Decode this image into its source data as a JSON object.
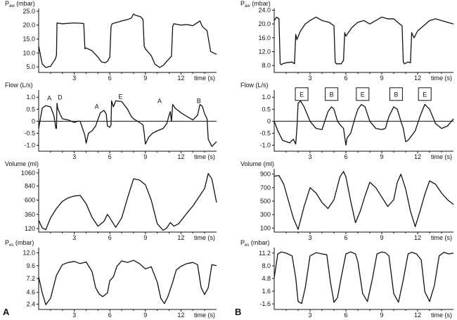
{
  "panel_labels": [
    "A",
    "B"
  ],
  "chart_data": [
    {
      "panel": "A",
      "type": "line",
      "ylabel_main": "P",
      "ylabel_sub": "aw",
      "ylabel_unit": " (mbar)",
      "xlabel": "time (s)",
      "xticks": [
        3,
        6,
        9,
        12
      ],
      "xlim": [
        0,
        15
      ],
      "yticks": [
        5.0,
        10.0,
        15.0,
        20.0,
        25.0
      ],
      "ytick_labels": [
        "5.0",
        "10.0",
        "15.0",
        "20.0",
        "25.0"
      ],
      "ylim": [
        3,
        26
      ],
      "series": [
        {
          "x": [
            0,
            0.3,
            0.6,
            1.0,
            1.2,
            1.4,
            1.5,
            1.55,
            2.0,
            3.0,
            3.8,
            3.9,
            4.0,
            4.5,
            5.0,
            5.3,
            5.6,
            5.8,
            6.0,
            6.1,
            6.2,
            7.0,
            7.5,
            7.8,
            8.0,
            8.2,
            8.6,
            8.8,
            8.9,
            9.0,
            9.5,
            9.8,
            10.2,
            10.5,
            10.8,
            11.2,
            11.3,
            11.4,
            12.0,
            12.5,
            13.0,
            13.6,
            13.8,
            14.2,
            14.5,
            15.0
          ],
          "y": [
            12.5,
            6,
            4.8,
            5.2,
            6.5,
            7.8,
            9.2,
            20.8,
            20.5,
            20.8,
            20.6,
            11.5,
            11.8,
            10.8,
            8.5,
            6.8,
            6.5,
            7.0,
            8.5,
            19.5,
            20.5,
            21.5,
            22.0,
            22.5,
            24.0,
            23.5,
            23.0,
            22.0,
            12.5,
            11.5,
            9.0,
            6.0,
            4.8,
            5.5,
            7.0,
            8.8,
            19.5,
            20.5,
            20.0,
            20.2,
            19.8,
            21.5,
            19.5,
            18.0,
            10.5,
            9.5
          ]
        }
      ]
    },
    {
      "panel": "A",
      "type": "line",
      "ylabel": "Flow (L/s)",
      "xlabel": "time (s)",
      "xticks": [
        3,
        6,
        9,
        12
      ],
      "xlim": [
        0,
        15
      ],
      "yticks": [
        -1.0,
        -0.5,
        0,
        0.5,
        1.0
      ],
      "ytick_labels": [
        "-1.0",
        "-0.5",
        "0",
        "0.5",
        "1.0"
      ],
      "ylim": [
        -1.25,
        1.3
      ],
      "zero_line": true,
      "annotations": [
        {
          "text": "A",
          "x": 0.9,
          "y": 0.98
        },
        {
          "text": "D",
          "x": 1.8,
          "y": 1.0
        },
        {
          "text": "A",
          "x": 4.9,
          "y": 0.62
        },
        {
          "text": "E",
          "x": 6.9,
          "y": 1.03
        },
        {
          "text": "A",
          "x": 10.2,
          "y": 0.86
        },
        {
          "text": "B",
          "x": 13.5,
          "y": 0.86
        }
      ],
      "series": [
        {
          "x": [
            0,
            0.3,
            0.6,
            1.0,
            1.2,
            1.3,
            1.45,
            1.5,
            1.55,
            1.6,
            1.8,
            2.0,
            2.5,
            3.0,
            3.3,
            3.5,
            3.9,
            4.0,
            4.2,
            4.5,
            4.8,
            5.2,
            5.5,
            5.7,
            5.8,
            6.0,
            6.1,
            6.15,
            6.3,
            6.5,
            7.0,
            7.5,
            7.8,
            8.0,
            8.5,
            8.8,
            8.9,
            9.0,
            9.3,
            9.6,
            10.0,
            10.5,
            10.8,
            11.0,
            11.1,
            11.2,
            11.3,
            11.5,
            12.0,
            12.5,
            13.0,
            13.4,
            13.6,
            13.8,
            14.0,
            14.2,
            14.3,
            14.6,
            15.0
          ],
          "y": [
            -0.3,
            0.55,
            0.65,
            0.6,
            0.35,
            0.2,
            -0.3,
            -0.3,
            0.75,
            0.55,
            0.3,
            0.1,
            0.05,
            -0.05,
            0.0,
            0.0,
            -0.6,
            -0.92,
            -0.5,
            -0.4,
            -0.2,
            0.35,
            0.45,
            0.3,
            -0.2,
            -0.25,
            -0.15,
            0.85,
            0.6,
            0.85,
            0.82,
            0.5,
            0.2,
            0.1,
            -0.05,
            -0.15,
            -0.5,
            -0.95,
            -0.65,
            -0.5,
            -0.4,
            -0.3,
            -0.1,
            0.25,
            0.4,
            0.0,
            0.7,
            0.55,
            0.35,
            0.2,
            0.05,
            0.25,
            0.7,
            0.62,
            0.3,
            0.1,
            -0.75,
            -1.05,
            -0.85
          ]
        }
      ]
    },
    {
      "panel": "A",
      "type": "line",
      "ylabel": "Volume (ml)",
      "xlabel": "time (s)",
      "xticks": [
        3,
        6,
        9,
        12
      ],
      "xlim": [
        0,
        15
      ],
      "yticks": [
        120,
        360,
        600,
        840,
        1060
      ],
      "ytick_labels": [
        "120",
        "360",
        "600",
        "840",
        "1060"
      ],
      "ylim": [
        60,
        1130
      ],
      "series": [
        {
          "x": [
            0,
            0.3,
            0.6,
            1.0,
            1.5,
            2.0,
            2.5,
            3.0,
            3.5,
            4.0,
            4.5,
            5.0,
            5.5,
            5.8,
            6.0,
            6.5,
            7.0,
            7.5,
            8.0,
            8.5,
            9.0,
            9.5,
            10.0,
            10.5,
            10.8,
            11.1,
            11.4,
            11.8,
            12.5,
            13.0,
            13.5,
            14.0,
            14.3,
            14.6,
            15.0
          ],
          "y": [
            260,
            130,
            100,
            300,
            460,
            580,
            640,
            670,
            680,
            540,
            310,
            160,
            240,
            360,
            300,
            140,
            300,
            640,
            960,
            940,
            860,
            600,
            200,
            90,
            130,
            220,
            160,
            200,
            380,
            500,
            650,
            800,
            1050,
            960,
            560
          ]
        }
      ]
    },
    {
      "panel": "A",
      "type": "line",
      "ylabel_main": "P",
      "ylabel_sub": "es",
      "ylabel_unit": " (mbar)",
      "xlabel": "time (s)",
      "xticks": [
        3,
        6,
        9,
        12
      ],
      "xlim": [
        0,
        15
      ],
      "yticks": [
        2.4,
        4.6,
        7.2,
        9.6,
        12.0
      ],
      "ytick_labels": [
        "2.4",
        "4.6",
        "7.2",
        "9.6",
        "12.0"
      ],
      "ylim": [
        1.4,
        13.0
      ],
      "series": [
        {
          "x": [
            0,
            0.3,
            0.6,
            1.0,
            1.5,
            2.0,
            2.5,
            3.0,
            3.5,
            4.0,
            4.5,
            4.8,
            5.1,
            5.4,
            5.8,
            6.0,
            6.3,
            6.6,
            7.0,
            7.5,
            8.0,
            8.5,
            9.0,
            9.5,
            10.0,
            10.3,
            10.6,
            10.9,
            11.3,
            11.6,
            12.0,
            12.5,
            13.0,
            13.4,
            13.7,
            14.0,
            14.3,
            14.6,
            15.0
          ],
          "y": [
            7.5,
            4.5,
            2.3,
            3.5,
            7.8,
            9.8,
            10.2,
            10.4,
            10.0,
            10.3,
            8.5,
            5.5,
            4.3,
            3.8,
            4.5,
            6.8,
            7.5,
            9.5,
            10.5,
            10.2,
            10.6,
            10.0,
            9.0,
            9.4,
            6.5,
            3.5,
            2.5,
            3.8,
            6.5,
            8.8,
            9.5,
            10.0,
            10.2,
            9.8,
            5.5,
            4.2,
            5.5,
            9.8,
            9.6
          ]
        }
      ]
    },
    {
      "panel": "B",
      "type": "line",
      "ylabel_main": "P",
      "ylabel_sub": "aw",
      "ylabel_unit": " (mbar)",
      "xlabel": "time (s)",
      "xticks": [
        3,
        6,
        9,
        12
      ],
      "xlim": [
        0,
        15
      ],
      "yticks": [
        8.0,
        12.0,
        16.0,
        20.0,
        24.0
      ],
      "ytick_labels": [
        "8.0",
        "12.0",
        "16.0",
        "20.0",
        "24.0"
      ],
      "ylim": [
        6,
        24.5
      ],
      "series": [
        {
          "x": [
            0,
            0.2,
            0.4,
            0.5,
            0.6,
            0.7,
            1.0,
            1.5,
            1.7,
            1.8,
            1.9,
            2.2,
            2.6,
            3.0,
            3.5,
            4.0,
            4.6,
            5.0,
            5.1,
            5.2,
            5.6,
            5.8,
            5.9,
            6.0,
            6.3,
            6.5,
            7.0,
            7.5,
            8.0,
            8.5,
            9.0,
            9.5,
            10.0,
            10.5,
            10.7,
            10.8,
            10.9,
            11.2,
            11.4,
            11.5,
            11.7,
            12.0,
            12.5,
            13.0,
            13.5,
            14.0,
            14.5,
            15.0
          ],
          "y": [
            21.0,
            22.0,
            21.5,
            8.5,
            8.2,
            8.5,
            8.8,
            9.0,
            8.5,
            17.0,
            15.5,
            18.0,
            20.0,
            21.0,
            22.0,
            21.0,
            20.5,
            19.5,
            9.0,
            8.5,
            8.5,
            9.5,
            17.5,
            16.5,
            18.0,
            19.0,
            20.5,
            21.0,
            20.0,
            21.0,
            22.0,
            21.5,
            21.5,
            20.0,
            19.5,
            9.0,
            8.5,
            9.0,
            8.8,
            17.5,
            16.0,
            18.0,
            19.5,
            21.0,
            21.5,
            21.0,
            20.5,
            20.0
          ]
        }
      ]
    },
    {
      "panel": "B",
      "type": "line",
      "ylabel": "Flow (L/s)",
      "xlabel": "time (s)",
      "xticks": [
        3,
        6,
        9,
        12
      ],
      "xlim": [
        0,
        15
      ],
      "yticks": [
        -1.0,
        -0.5,
        0,
        0.5,
        1.0
      ],
      "ytick_labels": [
        "-1.0",
        "-0.5",
        "0",
        "0.5",
        "1.0"
      ],
      "ylim": [
        -1.25,
        1.3
      ],
      "zero_line": true,
      "annotations": [
        {
          "text": "E",
          "x": 2.3,
          "y": 1.13,
          "boxed": true
        },
        {
          "text": "B",
          "x": 4.8,
          "y": 1.13,
          "boxed": true
        },
        {
          "text": "E",
          "x": 7.4,
          "y": 1.13,
          "boxed": true
        },
        {
          "text": "B",
          "x": 10.2,
          "y": 1.13,
          "boxed": true
        },
        {
          "text": "E",
          "x": 12.6,
          "y": 1.13,
          "boxed": true
        }
      ],
      "series": [
        {
          "x": [
            0,
            0.3,
            0.5,
            0.7,
            1.0,
            1.3,
            1.6,
            1.8,
            1.9,
            2.0,
            2.2,
            2.5,
            3.0,
            3.5,
            4.0,
            4.5,
            4.8,
            5.0,
            5.3,
            5.6,
            5.8,
            6.0,
            6.1,
            6.4,
            6.8,
            7.0,
            7.3,
            7.6,
            8.0,
            8.5,
            9.0,
            9.3,
            9.6,
            10.0,
            10.3,
            10.6,
            10.8,
            11.0,
            11.2,
            11.5,
            11.8,
            12.2,
            12.6,
            13.0,
            13.5,
            14.0,
            14.5,
            15.0
          ],
          "y": [
            0.0,
            -0.4,
            -0.6,
            -0.8,
            -0.85,
            -0.9,
            -0.75,
            -0.95,
            -0.3,
            0.75,
            0.85,
            0.6,
            0.0,
            -0.3,
            -0.35,
            0.4,
            0.6,
            0.5,
            0.0,
            -0.2,
            -0.3,
            -1.0,
            -0.7,
            -0.5,
            0.2,
            0.5,
            0.7,
            0.6,
            0.0,
            -0.3,
            -0.35,
            -0.3,
            0.2,
            0.6,
            0.5,
            0.0,
            -0.3,
            -0.85,
            -0.8,
            -0.6,
            -0.4,
            0.2,
            0.7,
            0.5,
            -0.1,
            -0.3,
            -0.2,
            0.1
          ]
        }
      ]
    },
    {
      "panel": "B",
      "type": "line",
      "ylabel": "Volume (ml)",
      "xlabel": "time (s)",
      "xticks": [
        3,
        6,
        9,
        12
      ],
      "xlim": [
        0,
        15
      ],
      "yticks": [
        100,
        300,
        500,
        700,
        900
      ],
      "ytick_labels": [
        "100",
        "300",
        "500",
        "700",
        "900"
      ],
      "ylim": [
        40,
        980
      ],
      "series": [
        {
          "x": [
            0,
            0.4,
            0.8,
            1.2,
            1.6,
            2.0,
            2.5,
            3.0,
            3.5,
            4.0,
            4.5,
            5.0,
            5.5,
            5.8,
            6.0,
            6.4,
            6.8,
            7.2,
            7.6,
            8.0,
            8.5,
            9.0,
            9.5,
            10.0,
            10.3,
            10.6,
            11.0,
            11.4,
            11.8,
            12.2,
            12.6,
            13.0,
            13.5,
            14.0,
            14.5,
            15.0
          ],
          "y": [
            870,
            880,
            750,
            500,
            250,
            80,
            420,
            700,
            620,
            480,
            390,
            520,
            860,
            940,
            860,
            500,
            180,
            350,
            580,
            780,
            700,
            560,
            420,
            520,
            780,
            900,
            680,
            350,
            120,
            350,
            600,
            800,
            750,
            620,
            520,
            450
          ]
        }
      ]
    },
    {
      "panel": "B",
      "type": "line",
      "ylabel_main": "P",
      "ylabel_sub": "es",
      "ylabel_unit": " (mbar)",
      "xlabel": "time (s)",
      "xticks": [
        3,
        6,
        9,
        12
      ],
      "xlim": [
        0,
        15
      ],
      "yticks": [
        -1.6,
        1.6,
        4.8,
        8.0,
        11.2
      ],
      "ytick_labels": [
        "-1.6",
        "1.6",
        "4.8",
        "8.0",
        "11.2"
      ],
      "ylim": [
        -3.0,
        12.6
      ],
      "series": [
        {
          "x": [
            0,
            0.3,
            0.6,
            1.0,
            1.5,
            1.8,
            2.0,
            2.3,
            2.6,
            3.0,
            3.5,
            4.0,
            4.4,
            4.7,
            5.0,
            5.3,
            5.6,
            6.0,
            6.4,
            6.8,
            7.0,
            7.4,
            7.8,
            8.2,
            8.6,
            9.0,
            9.3,
            9.6,
            10.0,
            10.4,
            10.8,
            11.2,
            11.5,
            11.9,
            12.3,
            12.6,
            13.0,
            13.4,
            13.8,
            14.2,
            14.6,
            15.0
          ],
          "y": [
            5.0,
            11.0,
            11.5,
            11.2,
            10.5,
            5.0,
            -1.0,
            -1.5,
            2.5,
            10.5,
            11.3,
            11.0,
            10.8,
            4.0,
            -1.2,
            0.0,
            5.0,
            11.0,
            11.5,
            11.0,
            9.0,
            1.0,
            -1.0,
            4.5,
            11.0,
            11.5,
            11.3,
            10.5,
            1.0,
            -1.2,
            4.5,
            11.0,
            11.4,
            11.0,
            9.5,
            1.5,
            -1.0,
            3.0,
            10.5,
            11.4,
            11.0,
            11.2
          ]
        }
      ]
    }
  ]
}
